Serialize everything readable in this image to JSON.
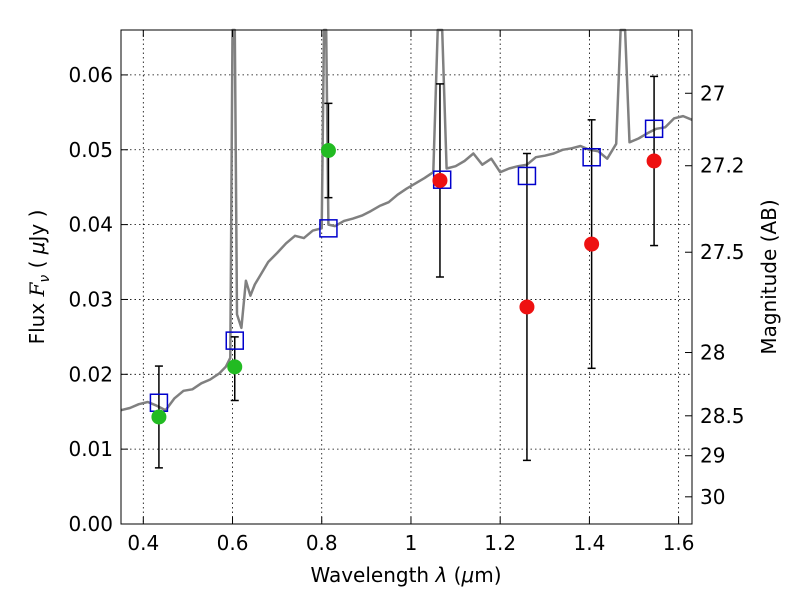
{
  "chart_data": {
    "type": "scatter",
    "title": "",
    "xlabel_parts": {
      "pre": "Wavelength  ",
      "sym": "λ",
      "post": " (",
      "mu": "μ",
      "unit": "m)"
    },
    "ylabel_parts": {
      "pre": "Flux  ",
      "F": "F",
      "nu": "ν",
      "post": "  ( ",
      "mu": "μ",
      "unit": "Jy )"
    },
    "ylabel_right": "Magnitude (AB)",
    "xlim": [
      0.35,
      1.63
    ],
    "ylim": [
      0.0,
      0.066
    ],
    "grid": true,
    "x_ticks": [
      0.4,
      0.6,
      0.8,
      1.0,
      1.2,
      1.4,
      1.6
    ],
    "x_tick_labels": [
      "0.4",
      "0.6",
      "0.8",
      "1",
      "1.2",
      "1.4",
      "1.6"
    ],
    "y_ticks": [
      0.0,
      0.01,
      0.02,
      0.03,
      0.04,
      0.05,
      0.06
    ],
    "y_tick_labels": [
      "0.00",
      "0.01",
      "0.02",
      "0.03",
      "0.04",
      "0.05",
      "0.06"
    ],
    "right_ticks": [
      {
        "mag": 27,
        "label": "27"
      },
      {
        "mag": 27.2,
        "label": "27.2"
      },
      {
        "mag": 27.5,
        "label": "27.5"
      },
      {
        "mag": 28,
        "label": "28"
      },
      {
        "mag": 28.5,
        "label": "28.5"
      },
      {
        "mag": 29,
        "label": "29"
      },
      {
        "mag": 30,
        "label": "30"
      }
    ],
    "colors": {
      "sed": "#808080",
      "model": "#0000cc",
      "green": "#22bb22",
      "red": "#ee1111",
      "errbar": "#000000"
    },
    "sed_curve": [
      [
        0.35,
        0.0152
      ],
      [
        0.37,
        0.0155
      ],
      [
        0.39,
        0.016
      ],
      [
        0.41,
        0.0163
      ],
      [
        0.43,
        0.0158
      ],
      [
        0.45,
        0.0152
      ],
      [
        0.47,
        0.0168
      ],
      [
        0.49,
        0.0178
      ],
      [
        0.51,
        0.018
      ],
      [
        0.53,
        0.0188
      ],
      [
        0.55,
        0.0193
      ],
      [
        0.57,
        0.0201
      ],
      [
        0.585,
        0.021
      ],
      [
        0.595,
        0.0222
      ],
      [
        0.6,
        0.066
      ],
      [
        0.605,
        0.066
      ],
      [
        0.61,
        0.028
      ],
      [
        0.62,
        0.0262
      ],
      [
        0.63,
        0.0325
      ],
      [
        0.64,
        0.0305
      ],
      [
        0.65,
        0.032
      ],
      [
        0.66,
        0.033
      ],
      [
        0.68,
        0.035
      ],
      [
        0.7,
        0.0362
      ],
      [
        0.72,
        0.0375
      ],
      [
        0.74,
        0.0385
      ],
      [
        0.76,
        0.0382
      ],
      [
        0.78,
        0.0392
      ],
      [
        0.8,
        0.0395
      ],
      [
        0.805,
        0.066
      ],
      [
        0.81,
        0.066
      ],
      [
        0.815,
        0.04
      ],
      [
        0.83,
        0.0398
      ],
      [
        0.85,
        0.0405
      ],
      [
        0.87,
        0.0408
      ],
      [
        0.89,
        0.0412
      ],
      [
        0.91,
        0.0418
      ],
      [
        0.93,
        0.0425
      ],
      [
        0.95,
        0.043
      ],
      [
        0.97,
        0.044
      ],
      [
        0.99,
        0.0448
      ],
      [
        1.01,
        0.0455
      ],
      [
        1.03,
        0.0462
      ],
      [
        1.05,
        0.047
      ],
      [
        1.06,
        0.066
      ],
      [
        1.07,
        0.066
      ],
      [
        1.08,
        0.0475
      ],
      [
        1.1,
        0.0478
      ],
      [
        1.12,
        0.0485
      ],
      [
        1.14,
        0.0495
      ],
      [
        1.16,
        0.048
      ],
      [
        1.18,
        0.0488
      ],
      [
        1.2,
        0.047
      ],
      [
        1.22,
        0.0475
      ],
      [
        1.24,
        0.0478
      ],
      [
        1.26,
        0.048
      ],
      [
        1.28,
        0.049
      ],
      [
        1.3,
        0.0492
      ],
      [
        1.32,
        0.0495
      ],
      [
        1.34,
        0.05
      ],
      [
        1.36,
        0.0502
      ],
      [
        1.38,
        0.0505
      ],
      [
        1.4,
        0.05
      ],
      [
        1.42,
        0.0498
      ],
      [
        1.44,
        0.0488
      ],
      [
        1.46,
        0.0508
      ],
      [
        1.47,
        0.066
      ],
      [
        1.48,
        0.066
      ],
      [
        1.49,
        0.051
      ],
      [
        1.51,
        0.0515
      ],
      [
        1.53,
        0.0522
      ],
      [
        1.55,
        0.0528
      ],
      [
        1.57,
        0.053
      ],
      [
        1.59,
        0.0542
      ],
      [
        1.61,
        0.0545
      ],
      [
        1.63,
        0.054
      ]
    ],
    "model_points": [
      [
        0.435,
        0.0162
      ],
      [
        0.605,
        0.0245
      ],
      [
        0.815,
        0.0395
      ],
      [
        1.07,
        0.046
      ],
      [
        1.26,
        0.0465
      ],
      [
        1.405,
        0.049
      ],
      [
        1.545,
        0.0528
      ]
    ],
    "observed_points": [
      {
        "x": 0.435,
        "y": 0.0143,
        "err_lo": 0.0075,
        "err_hi": 0.0211,
        "color": "green"
      },
      {
        "x": 0.605,
        "y": 0.021,
        "err_lo": 0.0165,
        "err_hi": 0.025,
        "color": "green"
      },
      {
        "x": 0.815,
        "y": 0.0499,
        "err_lo": 0.0436,
        "err_hi": 0.0562,
        "color": "green"
      },
      {
        "x": 1.065,
        "y": 0.0459,
        "err_lo": 0.033,
        "err_hi": 0.0588,
        "color": "red"
      },
      {
        "x": 1.26,
        "y": 0.029,
        "err_lo": 0.0085,
        "err_hi": 0.0495,
        "color": "red"
      },
      {
        "x": 1.405,
        "y": 0.0374,
        "err_lo": 0.0208,
        "err_hi": 0.054,
        "color": "red"
      },
      {
        "x": 1.545,
        "y": 0.0485,
        "err_lo": 0.0372,
        "err_hi": 0.0598,
        "color": "red"
      }
    ]
  }
}
